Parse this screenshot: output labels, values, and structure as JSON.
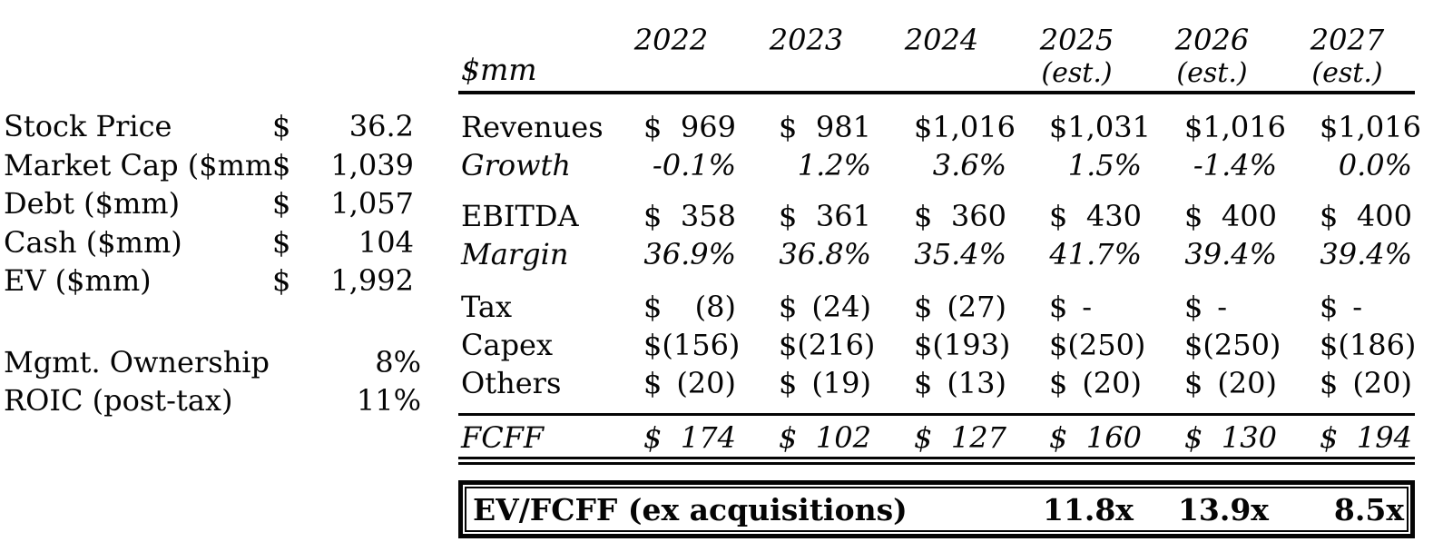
{
  "currency_symbol": "$",
  "left_panel": {
    "valuation_rows": [
      {
        "label": "Stock Price",
        "value": "36.2"
      },
      {
        "label": "Market Cap ($mm)",
        "value": "1,039"
      },
      {
        "label": "Debt ($mm)",
        "value": "1,057"
      },
      {
        "label": "Cash ($mm)",
        "value": "104"
      },
      {
        "label": "EV ($mm)",
        "value": "1,992"
      }
    ],
    "metric_rows": [
      {
        "label": "Mgmt. Ownership",
        "value": "8%"
      },
      {
        "label": "ROIC (post-tax)",
        "value": "11%"
      }
    ]
  },
  "table": {
    "unit_label": "$mm",
    "columns": [
      {
        "year": "2022",
        "note": ""
      },
      {
        "year": "2023",
        "note": ""
      },
      {
        "year": "2024",
        "note": ""
      },
      {
        "year": "2025",
        "note": "(est.)"
      },
      {
        "year": "2026",
        "note": "(est.)"
      },
      {
        "year": "2027",
        "note": "(est.)"
      }
    ],
    "rows": {
      "revenues": {
        "label": "Revenues",
        "values": [
          "969",
          "981",
          "1,016",
          "1,031",
          "1,016",
          "1,016"
        ]
      },
      "growth": {
        "label": "Growth",
        "values": [
          "-0.1%",
          "1.2%",
          "3.6%",
          "1.5%",
          "-1.4%",
          "0.0%"
        ]
      },
      "ebitda": {
        "label": "EBITDA",
        "values": [
          "358",
          "361",
          "360",
          "430",
          "400",
          "400"
        ]
      },
      "margin": {
        "label": "Margin",
        "values": [
          "36.9%",
          "36.8%",
          "35.4%",
          "41.7%",
          "39.4%",
          "39.4%"
        ]
      },
      "tax": {
        "label": "Tax",
        "values": [
          "(8)",
          "(24)",
          "(27)",
          "-",
          "-",
          "-"
        ]
      },
      "capex": {
        "label": "Capex",
        "values": [
          "(156)",
          "(216)",
          "(193)",
          "(250)",
          "(250)",
          "(186)"
        ]
      },
      "others": {
        "label": "Others",
        "values": [
          "(20)",
          "(19)",
          "(13)",
          "(20)",
          "(20)",
          "(20)"
        ]
      },
      "fcff": {
        "label": "FCFF",
        "values": [
          "174",
          "102",
          "127",
          "160",
          "130",
          "194"
        ]
      }
    },
    "summary": {
      "label": "EV/FCFF (ex acquisitions)",
      "values": [
        "",
        "",
        "",
        "11.8x",
        "13.9x",
        "8.5x"
      ]
    }
  }
}
